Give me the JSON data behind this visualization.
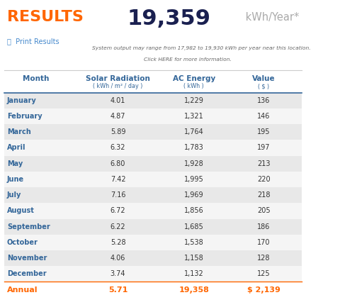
{
  "title_results": "RESULTS",
  "title_kwh": "19,359",
  "title_unit": " kWh/Year*",
  "subtitle": "System output may range from 17,982 to 19,930 kWh per year near this location.",
  "subtitle2": "Click HERE for more information.",
  "print_results": "Print Results",
  "col_headers": [
    "Month",
    "Solar Radiation",
    "AC Energy",
    "Value"
  ],
  "col_subheaders": [
    "",
    "( kWh / m² / day )",
    "( kWh )",
    "( $ )"
  ],
  "months": [
    "January",
    "February",
    "March",
    "April",
    "May",
    "June",
    "July",
    "August",
    "September",
    "October",
    "November",
    "December"
  ],
  "solar_radiation": [
    4.01,
    4.87,
    5.89,
    6.32,
    6.8,
    7.42,
    7.16,
    6.72,
    6.22,
    5.28,
    4.06,
    3.74
  ],
  "ac_energy": [
    "1,229",
    "1,321",
    "1,764",
    "1,783",
    "1,928",
    "1,995",
    "1,969",
    "1,856",
    "1,685",
    "1,538",
    "1,158",
    "1,132"
  ],
  "value": [
    136,
    146,
    195,
    197,
    213,
    220,
    218,
    205,
    186,
    170,
    128,
    125
  ],
  "annual_label": "Annual",
  "annual_radiation": "5.71",
  "annual_energy": "19,358",
  "annual_value": "$ 2,139",
  "color_results": "#FF6600",
  "color_header": "#336699",
  "color_month": "#336699",
  "color_data": "#333333",
  "color_annual": "#FF6600",
  "color_row_odd": "#E8E8E8",
  "color_row_even": "#F5F5F5",
  "color_border": "#CCCCCC",
  "color_blue_line": "#336699",
  "bg_color": "#FFFFFF"
}
